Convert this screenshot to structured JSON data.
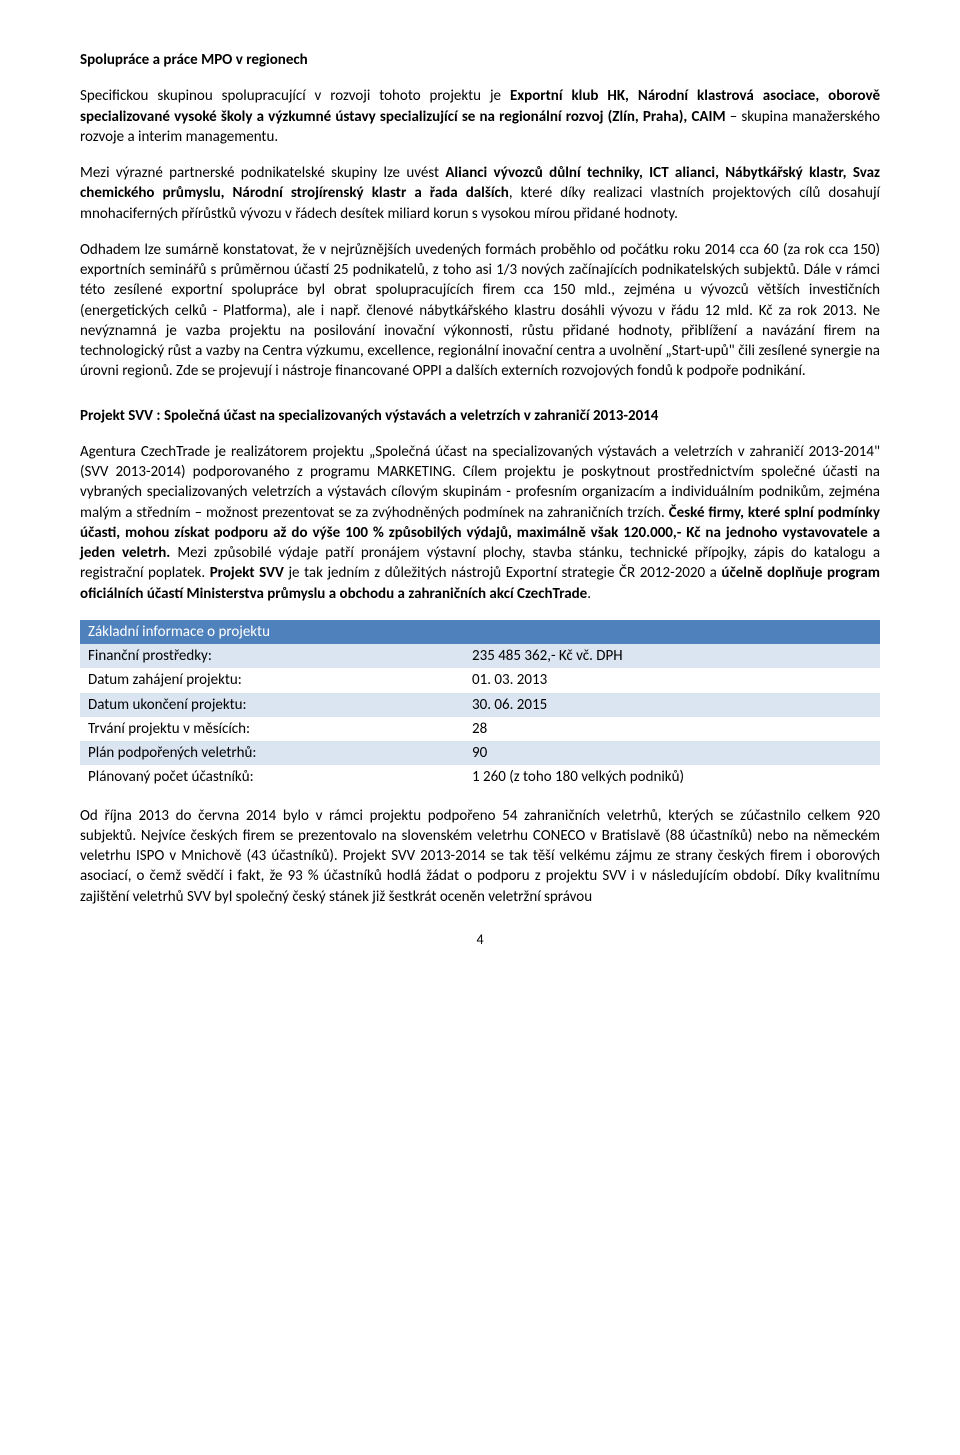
{
  "section1": {
    "title": "Spolupráce a práce MPO v regionech",
    "p1_a": "Specifickou skupinou spolupracující v rozvoji tohoto projektu je ",
    "p1_b": "Exportní klub HK, Národní klastrová asociace, oborově specializované vysoké školy a výzkumné ústavy specializující se na regionální rozvoj (Zlín, Praha), CAIM",
    "p1_c": " – skupina manažerského rozvoje a interim managementu.",
    "p2_a": "Mezi výrazné partnerské podnikatelské skupiny lze uvést ",
    "p2_b": "Alianci vývozců důlní techniky, ICT alianci, Nábytkářský klastr, Svaz chemického průmyslu, Národní strojírenský klastr a řada dalších",
    "p2_c": ", které díky realizaci vlastních projektových cílů dosahují mnohaciferných přírůstků vývozu v řádech desítek miliard korun s vysokou mírou přidané hodnoty.",
    "p3": "Odhadem lze sumárně konstatovat, že v nejrůznějších uvedených formách proběhlo od počátku roku 2014 cca 60 (za rok cca 150) exportních seminářů s průměrnou účastí 25 podnikatelů, z toho asi 1/3 nových začínajících podnikatelských subjektů. Dále v rámci této zesílené exportní spolupráce byl obrat spolupracujících firem cca 150 mld., zejména u vývozců větších investičních (energetických celků - Platforma), ale i např. členové nábytkářského klastru dosáhli vývozu v řádu 12 mld. Kč za rok 2013. Ne nevýznamná je vazba projektu na posilování inovační výkonnosti, růstu přidané hodnoty, přiblížení a navázání firem na technologický růst a vazby na Centra výzkumu, excellence, regionální inovační centra a uvolnění „Start-upů\" čili zesílené synergie na úrovni regionů. Zde se projevují i nástroje financované OPPI a dalších externích rozvojových fondů k podpoře podnikání."
  },
  "section2": {
    "title": "Projekt SVV : Společná účast na specializovaných výstavách a veletrzích v zahraničí 2013-2014",
    "p1_a": "Agentura CzechTrade je realizátorem projektu „Společná účast na specializovaných výstavách a veletrzích v zahraničí 2013-2014\" (SVV 2013-2014) podporovaného z programu MARKETING. Cílem projektu je poskytnout prostřednictvím společné účasti na vybraných specializovaných veletrzích a výstavách cílovým skupinám - profesním organizacím a individuálním podnikům, zejména malým a středním – možnost prezentovat se za zvýhodněných podmínek na zahraničních trzích. ",
    "p1_b": "České firmy, které splní podmínky účasti, mohou získat podporu až do výše 100 % způsobilých výdajů, maximálně však 120.000,- Kč na jednoho vystavovatele a jeden veletrh.",
    "p1_c": " Mezi způsobilé výdaje patří pronájem výstavní plochy, stavba stánku, technické přípojky, zápis do katalogu a registrační poplatek. ",
    "p1_d": "Projekt SVV",
    "p1_e": " je tak jedním z důležitých nástrojů Exportní strategie ČR 2012-2020 a ",
    "p1_f": "účelně doplňuje program oficiálních účastí Ministerstva průmyslu a obchodu a zahraničních akcí CzechTrade",
    "p1_g": "."
  },
  "table": {
    "header": "Základní informace o projektu",
    "rows": [
      {
        "label": "Finanční prostředky:",
        "value": "235 485 362,- Kč vč. DPH"
      },
      {
        "label": "Datum zahájení projektu:",
        "value": "01. 03. 2013"
      },
      {
        "label": "Datum ukončení projektu:",
        "value": "30. 06. 2015"
      },
      {
        "label": "Trvání projektu v měsících:",
        "value": "28"
      },
      {
        "label": "Plán podpořených veletrhů:",
        "value": "90"
      },
      {
        "label": "Plánovaný počet účastníků:",
        "value": "1 260 (z toho 180 velkých podniků)"
      }
    ]
  },
  "closing": {
    "p": "Od října 2013 do června 2014 bylo v rámci projektu podpořeno 54 zahraničních veletrhů, kterých se zúčastnilo celkem 920 subjektů. Nejvíce českých firem se prezentovalo na slovenském veletrhu CONECO v Bratislavě (88 účastníků) nebo na německém veletrhu ISPO v Mnichově (43 účastníků). Projekt SVV 2013-2014 se tak těší velkému zájmu ze strany českých firem i oborových asociací, o čemž svědčí i fakt, že 93 % účastníků hodlá žádat o podporu z projektu SVV i v následujícím období. Díky kvalitnímu zajištění veletrhů SVV byl společný český stánek již šestkrát oceněn veletržní správou"
  },
  "pageNumber": "4",
  "colors": {
    "tableHeaderBg": "#4f81bd",
    "tableHeaderText": "#ffffff",
    "tableShadeBg": "#dbe5f1"
  }
}
